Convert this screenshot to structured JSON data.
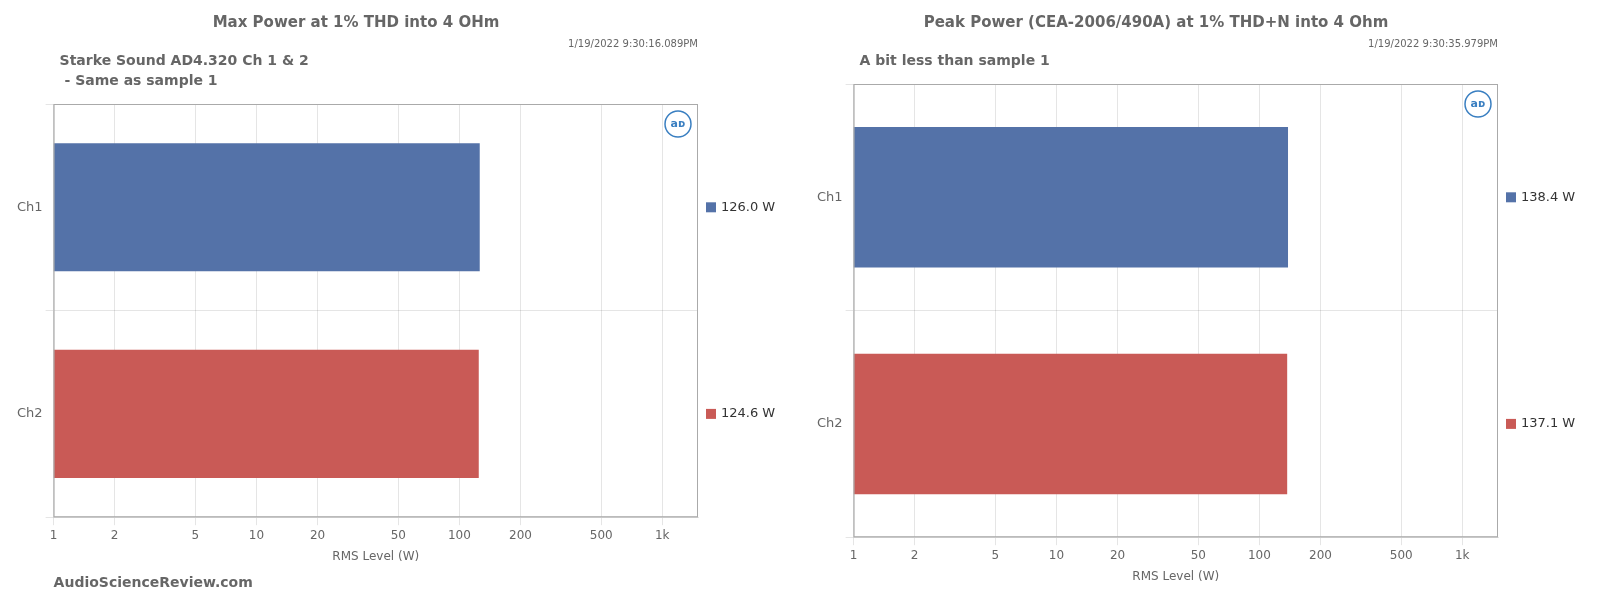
{
  "chart_data": [
    {
      "type": "bar",
      "orientation": "horizontal",
      "title": "Max Power at 1% THD into 4 OHm",
      "subtitle": "1/19/2022 9:30:16.089PM",
      "annotation": "Starke Sound AD4.320 Ch 1 & 2\n - Same as sample 1",
      "watermark": "AudioScienceReview.com",
      "logo": "aᴅ",
      "categories": [
        "Ch1",
        "Ch2"
      ],
      "values": [
        126.0,
        124.6
      ],
      "value_labels": [
        "126.0 W",
        "124.6 W"
      ],
      "data_labels": true,
      "colors": [
        "#5472a8",
        "#c95a56"
      ],
      "xlabel": "RMS Level (W)",
      "log": "x",
      "xlim": [
        1,
        1500
      ],
      "xticks": [
        1,
        2,
        5,
        10,
        20,
        50,
        100,
        200,
        500,
        {
          "value": 1000,
          "label": "1k"
        }
      ],
      "grid": true
    },
    {
      "type": "bar",
      "orientation": "horizontal",
      "title": "Peak Power (CEA-2006/490A) at 1% THD+N into 4 Ohm",
      "subtitle": "1/19/2022 9:30:35.979PM",
      "annotation": "A bit less than sample 1",
      "logo": "aᴅ",
      "categories": [
        "Ch1",
        "Ch2"
      ],
      "values": [
        138.4,
        137.1
      ],
      "value_labels": [
        "138.4 W",
        "137.1 W"
      ],
      "data_labels": true,
      "colors": [
        "#5472a8",
        "#c95a56"
      ],
      "xlabel": "RMS Level (W)",
      "log": "x",
      "xlim": [
        1,
        1500
      ],
      "xticks": [
        1,
        2,
        5,
        10,
        20,
        50,
        100,
        200,
        500,
        {
          "value": 1000,
          "label": "1k"
        }
      ],
      "grid": true
    }
  ]
}
